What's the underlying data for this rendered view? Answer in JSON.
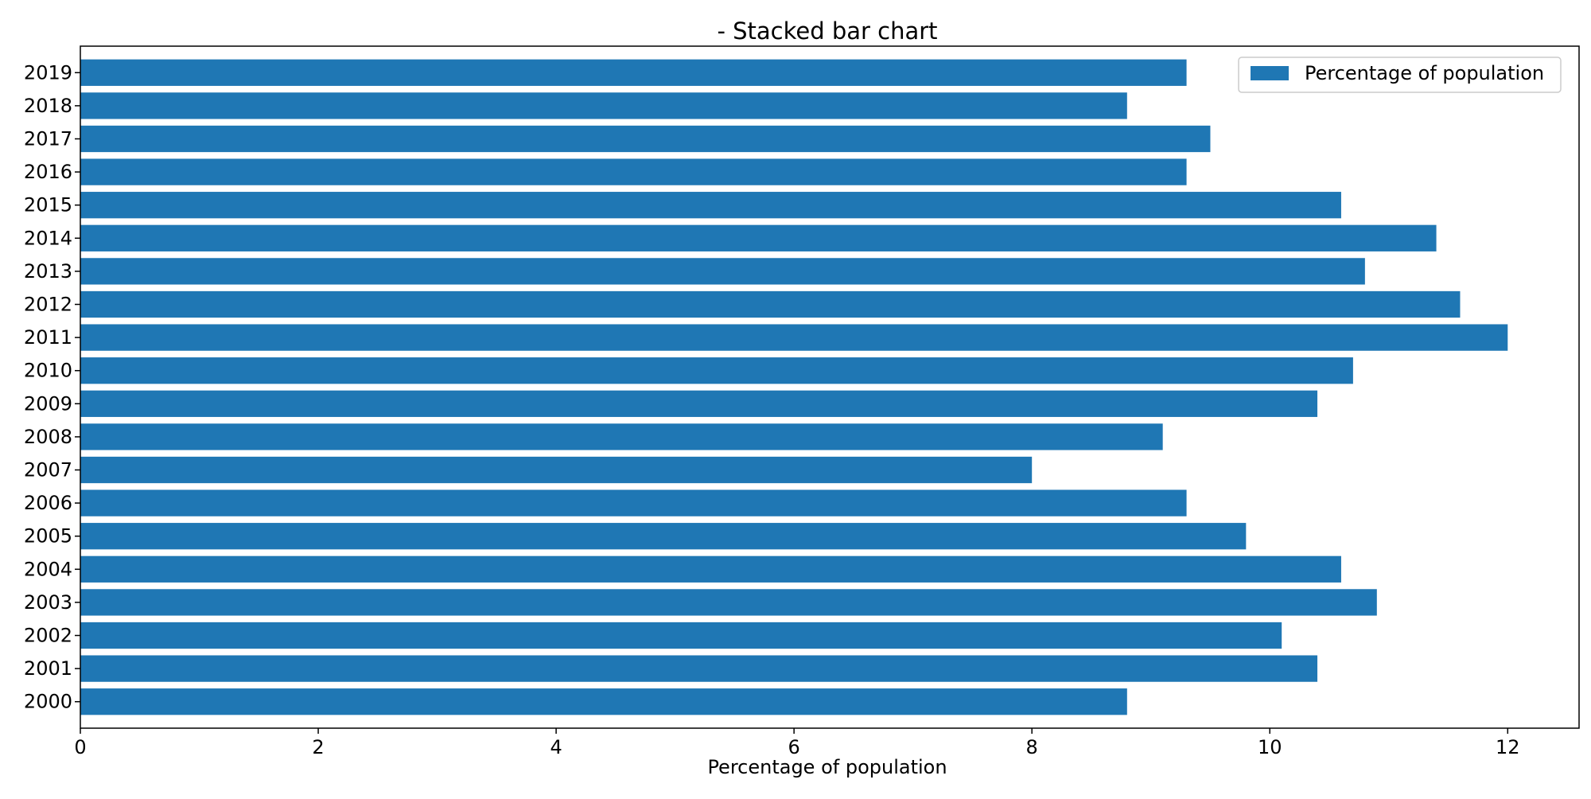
{
  "chart_data": {
    "type": "bar",
    "orientation": "horizontal",
    "title": "- Stacked bar chart",
    "xlabel": "Percentage of population",
    "ylabel": "",
    "categories": [
      "2000",
      "2001",
      "2002",
      "2003",
      "2004",
      "2005",
      "2006",
      "2007",
      "2008",
      "2009",
      "2010",
      "2011",
      "2012",
      "2013",
      "2014",
      "2015",
      "2016",
      "2017",
      "2018",
      "2019"
    ],
    "series": [
      {
        "name": "Percentage of population",
        "color": "#1f77b4",
        "values": [
          8.8,
          10.4,
          10.1,
          10.9,
          10.6,
          9.8,
          9.3,
          8.0,
          9.1,
          10.4,
          10.7,
          12.0,
          11.6,
          10.8,
          11.4,
          10.6,
          9.3,
          9.5,
          8.8,
          9.3
        ]
      }
    ],
    "xlim": [
      0,
      12.6
    ],
    "xticks": [
      0,
      2,
      4,
      6,
      8,
      10,
      12
    ],
    "grid": false,
    "legend": "top-right"
  }
}
